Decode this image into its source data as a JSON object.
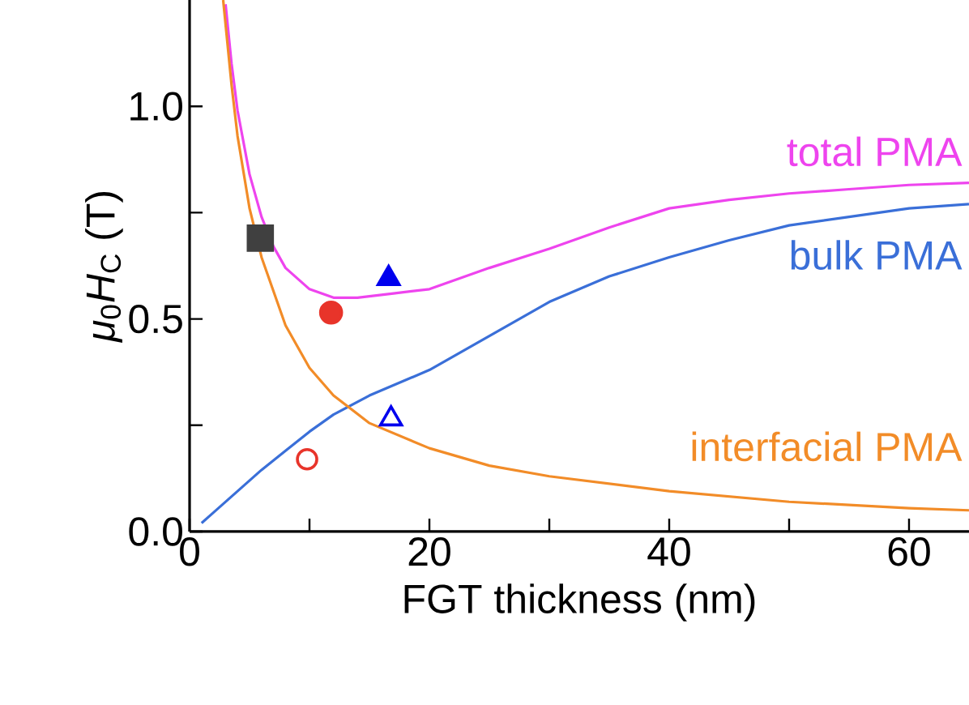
{
  "chart_data": {
    "type": "line",
    "xlabel": "FGT thickness (nm)",
    "ylabel": "*μ*$_{0}$*H*$_{C}$ (T)",
    "xlim": [
      0,
      65
    ],
    "ylim": [
      0,
      1.25
    ],
    "xticks": [
      0,
      {
        "value": 10,
        "label": null
      },
      20,
      {
        "value": 30,
        "label": null
      },
      40,
      {
        "value": 50,
        "label": null
      },
      60
    ],
    "yticks": [
      {
        "value": 0,
        "label": "0.0"
      },
      {
        "value": 0.25,
        "label": null
      },
      {
        "value": 0.5,
        "label": "0.5"
      },
      {
        "value": 0.75,
        "label": null
      },
      {
        "value": 1,
        "label": "1.0"
      }
    ],
    "marker": "none",
    "series": [
      {
        "name": "total PMA",
        "type": "line",
        "color": "#ee44ee",
        "x": [
          3,
          3.5,
          4,
          5,
          6,
          7,
          8,
          10,
          12,
          14,
          17,
          20,
          25,
          30,
          35,
          40,
          45,
          50,
          55,
          60,
          65
        ],
        "values": [
          1.24,
          1.1,
          0.99,
          0.84,
          0.74,
          0.67,
          0.62,
          0.57,
          0.55,
          0.55,
          0.56,
          0.57,
          0.62,
          0.665,
          0.715,
          0.76,
          0.78,
          0.795,
          0.805,
          0.815,
          0.82
        ]
      },
      {
        "name": "bulk PMA",
        "type": "line",
        "color": "#3a6fd8",
        "x": [
          1,
          2,
          4,
          6,
          8,
          10,
          12,
          15,
          20,
          25,
          30,
          35,
          40,
          45,
          50,
          55,
          60,
          65
        ],
        "values": [
          0.02,
          0.045,
          0.095,
          0.145,
          0.19,
          0.235,
          0.275,
          0.32,
          0.38,
          0.46,
          0.54,
          0.6,
          0.645,
          0.685,
          0.72,
          0.74,
          0.76,
          0.77
        ]
      },
      {
        "name": "interfacial PMA",
        "type": "line",
        "color": "#f28c28",
        "x": [
          2.8,
          3.5,
          4,
          5,
          6,
          8,
          10,
          12,
          15,
          20,
          25,
          30,
          40,
          50,
          60,
          65
        ],
        "values": [
          1.25,
          1.05,
          0.93,
          0.76,
          0.645,
          0.485,
          0.385,
          0.32,
          0.255,
          0.196,
          0.155,
          0.13,
          0.095,
          0.07,
          0.055,
          0.05
        ]
      },
      {
        "type": "scatter",
        "marker": "square",
        "color": "#404040",
        "x": [
          5.9
        ],
        "values": [
          0.69
        ]
      },
      {
        "type": "scatter",
        "marker": "circle",
        "color": "#e8342a",
        "x": [
          11.8
        ],
        "values": [
          0.515
        ]
      },
      {
        "type": "scatter",
        "marker": "triangle",
        "color": "#0000ee",
        "x": [
          16.6
        ],
        "values": [
          0.595
        ]
      },
      {
        "type": "scatter",
        "marker": "triangle-open",
        "color": "#0000ee",
        "x": [
          16.8
        ],
        "values": [
          0.265
        ]
      },
      {
        "type": "scatter",
        "marker": "circle-open",
        "color": "#e8342a",
        "x": [
          9.8
        ],
        "values": [
          0.17
        ]
      }
    ]
  }
}
